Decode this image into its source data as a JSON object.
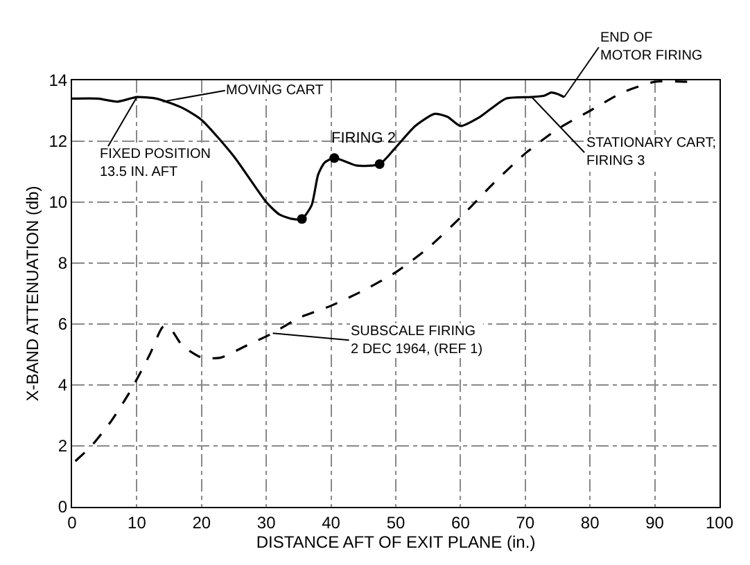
{
  "chart_data": {
    "type": "line",
    "xlabel": "DISTANCE AFT OF EXIT PLANE (in.)",
    "ylabel": "X-BAND ATTENUATION (db)",
    "xlim": [
      0,
      100
    ],
    "xticks": [
      0,
      10,
      20,
      30,
      40,
      50,
      60,
      70,
      80,
      90,
      100
    ],
    "ylim": [
      0,
      14
    ],
    "yticks": [
      0,
      2,
      4,
      6,
      8,
      10,
      12,
      14
    ],
    "grid": true,
    "series": [
      {
        "color": "#000000",
        "line_style": "solid",
        "marker": "none",
        "x": [
          0,
          4,
          7,
          10,
          13,
          17,
          20,
          25,
          30,
          32,
          34,
          35.5,
          37,
          38,
          39,
          40.5,
          44,
          47.5,
          50,
          53,
          56,
          58,
          60,
          63,
          67,
          71,
          73,
          74,
          75,
          76
        ],
        "values": [
          13.4,
          13.4,
          13.3,
          13.45,
          13.4,
          13.1,
          12.7,
          11.5,
          10.0,
          9.6,
          9.45,
          9.45,
          9.9,
          10.9,
          11.3,
          11.45,
          11.2,
          11.25,
          11.8,
          12.5,
          12.9,
          12.8,
          12.5,
          12.8,
          13.4,
          13.45,
          13.5,
          13.6,
          13.55,
          13.45
        ]
      },
      {
        "type": "scatter",
        "color": "#000000",
        "marker": "circle",
        "x": [
          35.5,
          40.5,
          47.5
        ],
        "values": [
          9.45,
          11.45,
          11.25
        ]
      },
      {
        "color": "#000000",
        "line_style": "dashed",
        "marker": "none",
        "x": [
          0.5,
          3,
          6,
          9,
          12,
          14,
          15,
          17,
          20,
          23,
          27,
          31,
          35,
          40,
          45,
          50,
          55,
          60,
          65,
          70,
          75,
          80,
          85,
          90,
          95
        ],
        "values": [
          1.5,
          2.0,
          2.8,
          3.8,
          5.0,
          5.9,
          5.9,
          5.3,
          4.9,
          4.9,
          5.3,
          5.7,
          6.2,
          6.6,
          7.1,
          7.7,
          8.5,
          9.5,
          10.6,
          11.6,
          12.4,
          13.0,
          13.6,
          13.95,
          13.95
        ]
      }
    ],
    "annotations": [
      {
        "text": "MOVING CART",
        "x": 14,
        "y": 13.3
      },
      {
        "text": "FIXED POSITION\n13.5 IN. AFT",
        "x": 10,
        "y": 13.45
      },
      {
        "text": "FIRING 2",
        "x": 40.5,
        "y": 11.45
      },
      {
        "text": "END OF\nMOTOR FIRING",
        "x": 76,
        "y": 13.45
      },
      {
        "text": "STATIONARY CART;\nFIRING 3",
        "x": 71,
        "y": 13.45
      },
      {
        "text": "SUBSCALE FIRING\n2 DEC 1964, (REF 1)",
        "x": 31,
        "y": 5.7
      }
    ]
  }
}
